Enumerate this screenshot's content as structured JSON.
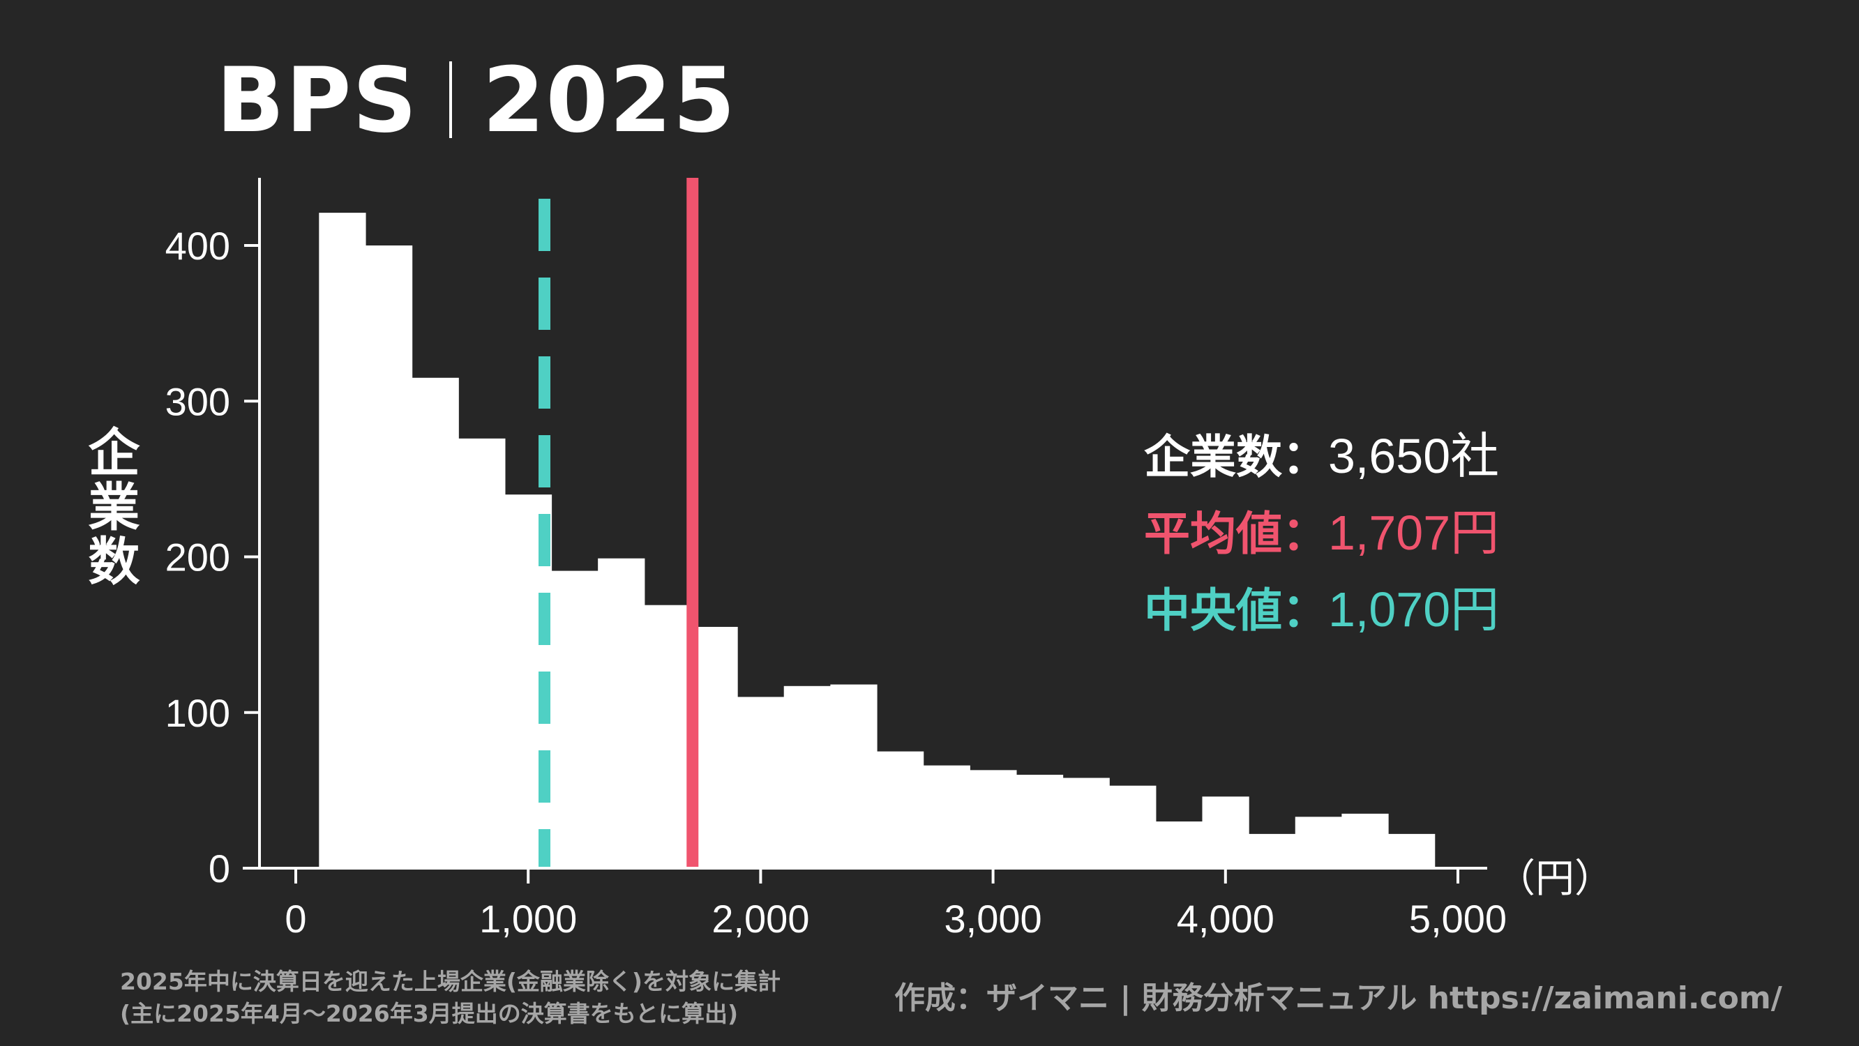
{
  "title": {
    "metric": "BPS",
    "year": "2025"
  },
  "colors": {
    "background": "#262626",
    "bars": "#ffffff",
    "mean": "#f0546e",
    "median": "#4fd0c4",
    "note": "#a6a6a6"
  },
  "stats": {
    "count_label": "企業数：",
    "count_value": "3,650社",
    "mean_label": "平均値：",
    "mean_value": "1,707円",
    "median_label": "中央値：",
    "median_value": "1,070円"
  },
  "unit_label": "（円）",
  "note_lines": [
    "2025年中に決算日を迎えた上場企業(金融業除く)を対象に集計",
    "(主に2025年4月〜2026年3月提出の決算書をもとに算出)"
  ],
  "credit": "作成：ザイマニ | 財務分析マニュアル https://zaimani.com/",
  "chart_data": {
    "type": "bar",
    "title": "BPS｜2025",
    "xlabel": "（円）",
    "ylabel": "企業数",
    "xlim": [
      -150,
      5050
    ],
    "ylim": [
      0,
      445
    ],
    "x_ticks": [
      0,
      1000,
      2000,
      3000,
      4000,
      5000
    ],
    "x_tick_labels": [
      "0",
      "1,000",
      "2,000",
      "3,000",
      "4,000",
      "5,000"
    ],
    "y_ticks": [
      0,
      100,
      200,
      300,
      400
    ],
    "y_tick_labels": [
      "0",
      "100",
      "200",
      "300",
      "400"
    ],
    "bin_edges": [
      100,
      300,
      500,
      700,
      900,
      1100,
      1300,
      1500,
      1700,
      1900,
      2100,
      2300,
      2500,
      2700,
      2900,
      3100,
      3300,
      3500,
      3700,
      3900,
      4100,
      4300,
      4500,
      4700,
      4900
    ],
    "values": [
      421,
      400,
      315,
      276,
      240,
      191,
      199,
      169,
      155,
      110,
      117,
      118,
      75,
      66,
      63,
      60,
      58,
      53,
      30,
      46,
      22,
      33,
      35,
      22
    ],
    "mean": 1707,
    "median": 1070,
    "grid": false,
    "legend": "none"
  }
}
